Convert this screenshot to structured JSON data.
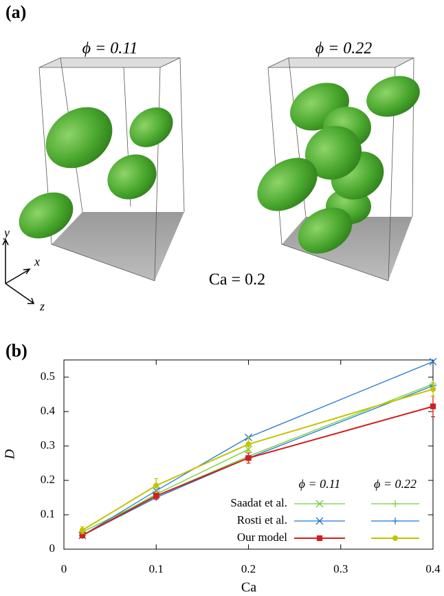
{
  "figure": {
    "panel_a": {
      "label": "(a)",
      "titles": [
        "ϕ = 0.11",
        "ϕ = 0.22"
      ],
      "ca_label": "Ca = 0.2",
      "axes": [
        "y",
        "x",
        "z"
      ]
    }
  },
  "chart_data": {
    "type": "line",
    "label": "(b)",
    "x_label": "Ca",
    "y_label": "D",
    "x": [
      0.02,
      0.1,
      0.2,
      0.4
    ],
    "xlim": [
      0,
      0.4
    ],
    "xticks": [
      0,
      0.1,
      0.2,
      0.3,
      0.4
    ],
    "ylim": [
      0,
      0.55
    ],
    "yticks": [
      0,
      0.1,
      0.2,
      0.3,
      0.4,
      0.5
    ],
    "legend_columns": [
      "ϕ = 0.11",
      "ϕ = 0.22"
    ],
    "groups": [
      {
        "name": "Saadat et al.",
        "series": [
          {
            "color": "#6ccf36",
            "marker": "x",
            "values": [
              0.04,
              0.16,
              0.29,
              null
            ]
          },
          {
            "color": "#6ccf36",
            "marker": "plus",
            "values": [
              0.05,
              0.155,
              0.27,
              0.48
            ]
          }
        ]
      },
      {
        "name": "Rosti et al.",
        "series": [
          {
            "color": "#1f78d2",
            "marker": "x",
            "values": [
              0.04,
              0.17,
              0.325,
              0.545
            ]
          },
          {
            "color": "#1f78d2",
            "marker": "plus",
            "values": [
              0.04,
              0.15,
              0.265,
              0.475
            ]
          }
        ]
      },
      {
        "name": "Our model",
        "series": [
          {
            "color": "#d21f1f",
            "marker": "square",
            "values": [
              0.04,
              0.155,
              0.265,
              0.415
            ],
            "errors": [
              0.005,
              0.01,
              0.015,
              0.03
            ]
          },
          {
            "color": "#c4c400",
            "marker": "circle",
            "values": [
              0.055,
              0.185,
              0.305,
              0.465
            ],
            "errors": [
              0.01,
              0.02,
              0.02,
              0.02
            ]
          }
        ]
      }
    ]
  }
}
